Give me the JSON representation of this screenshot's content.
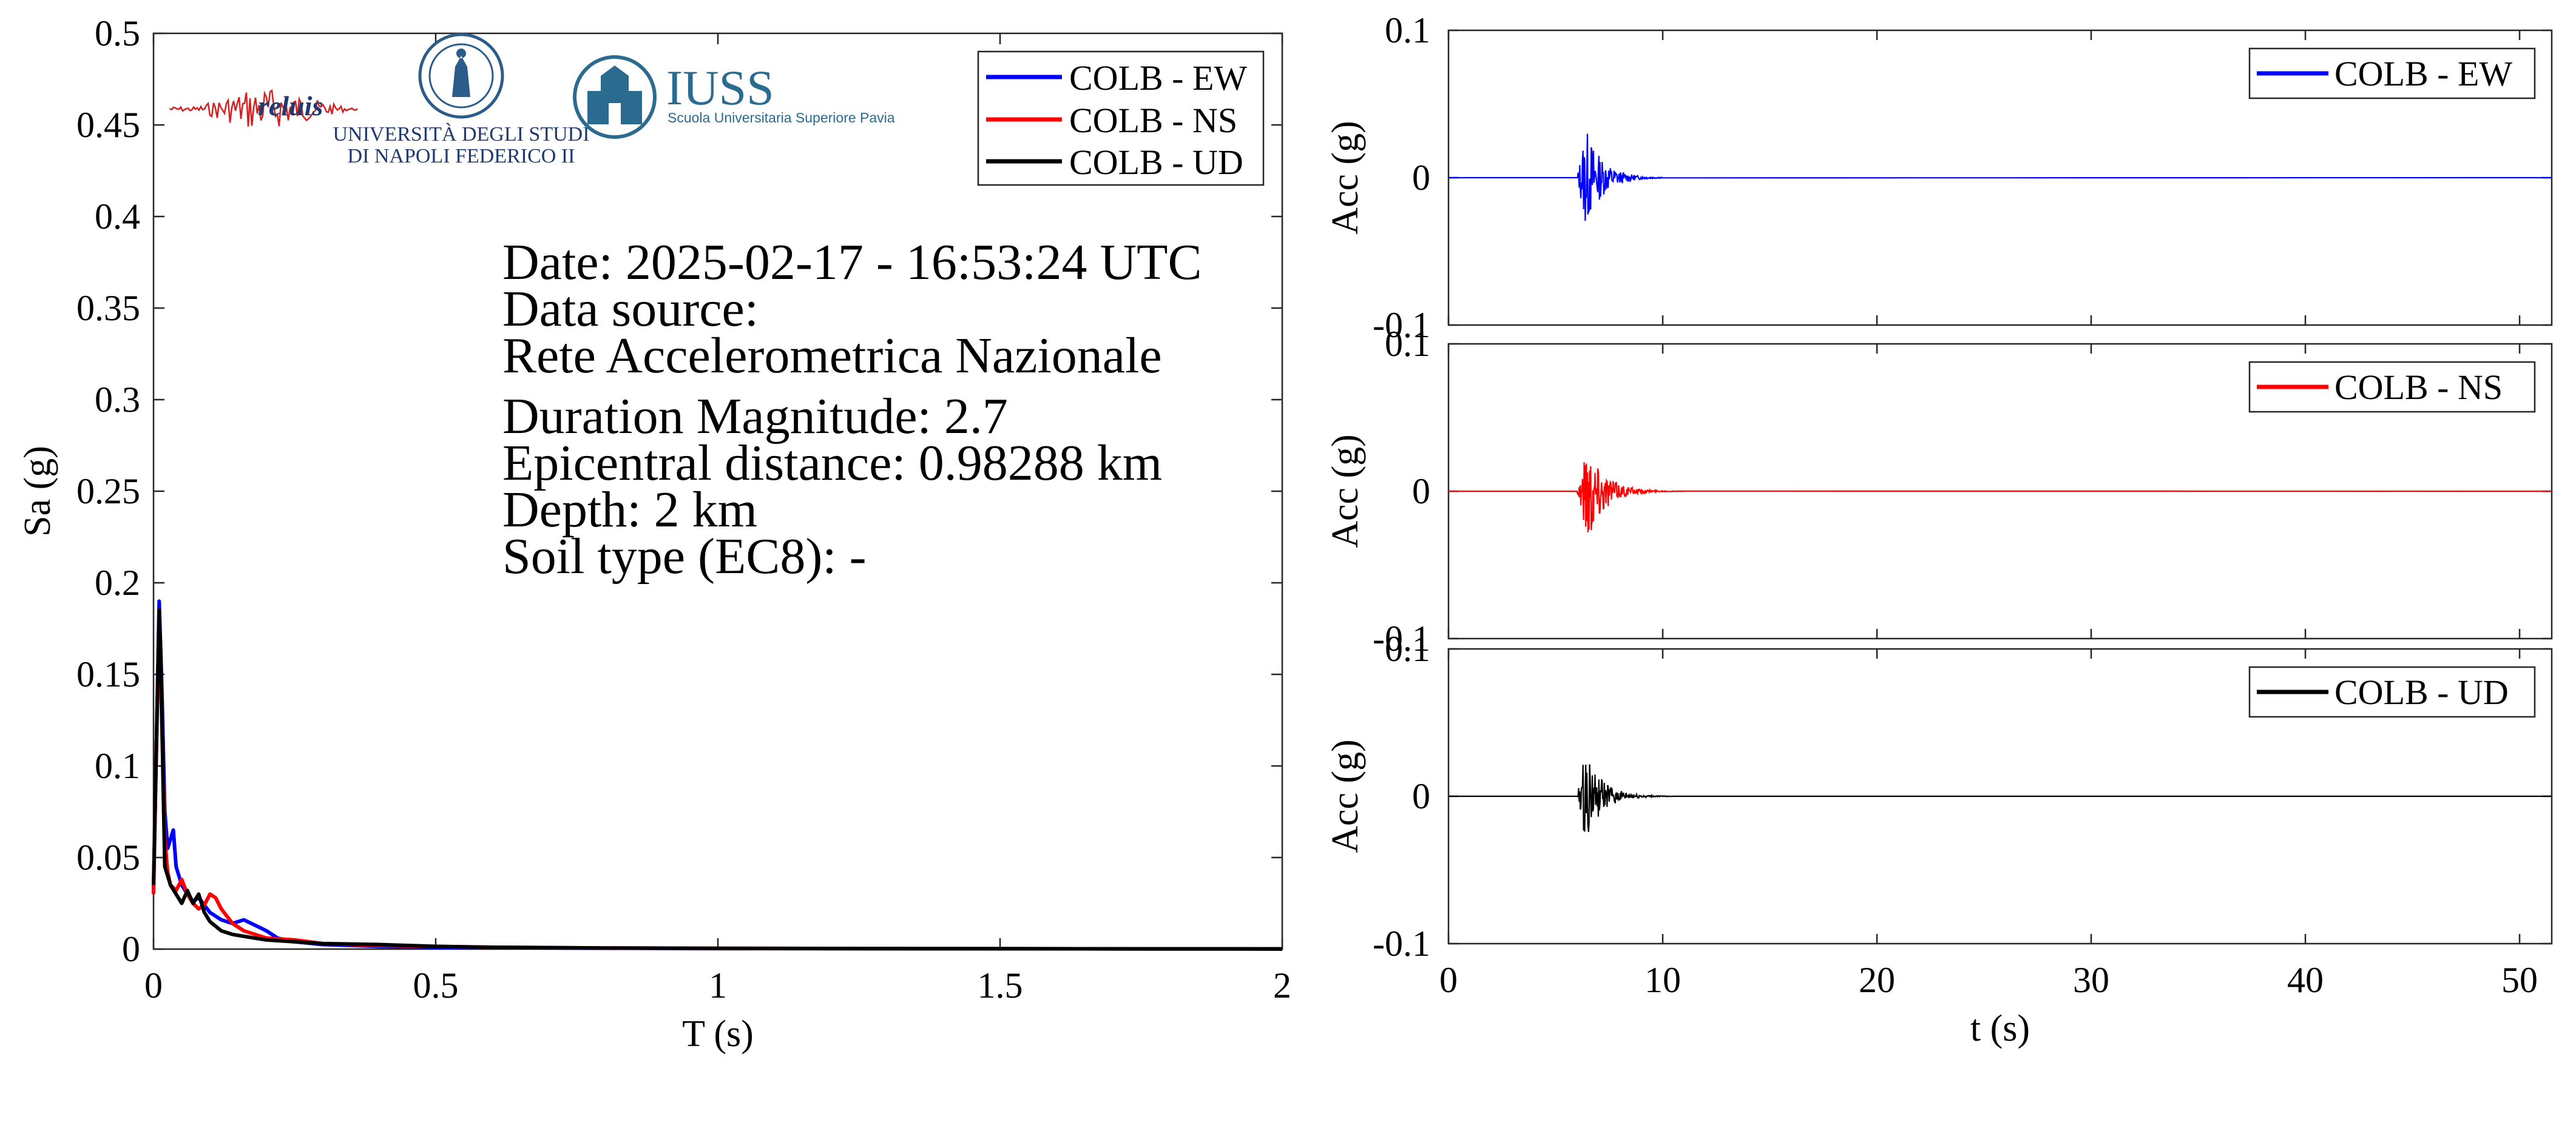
{
  "colors": {
    "ew": "#0000ff",
    "ns": "#ff0000",
    "ud": "#000000",
    "logo_blue": "#2b6b8f",
    "logo_red": "#d42020",
    "logo_navy": "#1f3a6e"
  },
  "logos": {
    "reluis": "reluis",
    "unina_line1": "UNIVERSITÀ DEGLI STUDI",
    "unina_line2": "DI NAPOLI FEDERICO II",
    "iuss_title": "IUSS",
    "iuss_subtitle": "Scuola Universitaria Superiore Pavia"
  },
  "info": {
    "date": "Date: 2025-02-17 - 16:53:24 UTC",
    "data_source_label": "Data source:",
    "data_source": "Rete Accelerometrica Nazionale",
    "magnitude": "Duration Magnitude: 2.7",
    "epicentral_distance": "Epicentral distance: 0.98288 km",
    "depth": "Depth: 2 km",
    "soil_type": "Soil type (EC8): -"
  },
  "chart_data": [
    {
      "type": "line",
      "xlabel": "T (s)",
      "ylabel": "Sa (g)",
      "xlim": [
        0,
        2
      ],
      "ylim": [
        0,
        0.5
      ],
      "xticks": [
        "0",
        "0.5",
        "1",
        "1.5",
        "2"
      ],
      "yticks": [
        "0",
        "0.05",
        "0.1",
        "0.15",
        "0.2",
        "0.25",
        "0.3",
        "0.35",
        "0.4",
        "0.45",
        "0.5"
      ],
      "legend_position": "top-right",
      "series": [
        {
          "name": "COLB - EW",
          "color": "#0000ff",
          "x": [
            0,
            0.01,
            0.015,
            0.02,
            0.025,
            0.03,
            0.035,
            0.04,
            0.05,
            0.06,
            0.07,
            0.08,
            0.09,
            0.1,
            0.12,
            0.14,
            0.16,
            0.18,
            0.2,
            0.22,
            0.25,
            0.3,
            0.35,
            0.4,
            0.5,
            0.6,
            0.8,
            1.0,
            1.5,
            2.0
          ],
          "y": [
            0.032,
            0.19,
            0.14,
            0.075,
            0.055,
            0.06,
            0.065,
            0.045,
            0.035,
            0.03,
            0.026,
            0.028,
            0.024,
            0.02,
            0.016,
            0.014,
            0.016,
            0.013,
            0.01,
            0.006,
            0.004,
            0.0025,
            0.002,
            0.0015,
            0.001,
            0.0008,
            0.0005,
            0.0003,
            0.0002,
            0.0001
          ]
        },
        {
          "name": "COLB - NS",
          "color": "#ff0000",
          "x": [
            0,
            0.01,
            0.015,
            0.02,
            0.025,
            0.03,
            0.04,
            0.05,
            0.06,
            0.07,
            0.08,
            0.09,
            0.1,
            0.11,
            0.12,
            0.14,
            0.16,
            0.18,
            0.2,
            0.25,
            0.3,
            0.4,
            0.5,
            0.6,
            0.8,
            1.0,
            1.5,
            2.0
          ],
          "y": [
            0.03,
            0.185,
            0.12,
            0.06,
            0.042,
            0.035,
            0.032,
            0.038,
            0.03,
            0.025,
            0.022,
            0.024,
            0.03,
            0.028,
            0.022,
            0.014,
            0.01,
            0.008,
            0.006,
            0.005,
            0.003,
            0.002,
            0.0015,
            0.001,
            0.0006,
            0.0004,
            0.0002,
            0.0001
          ]
        },
        {
          "name": "COLB - UD",
          "color": "#000000",
          "x": [
            0,
            0.01,
            0.013,
            0.017,
            0.02,
            0.025,
            0.03,
            0.04,
            0.05,
            0.06,
            0.07,
            0.08,
            0.09,
            0.1,
            0.12,
            0.14,
            0.16,
            0.2,
            0.25,
            0.3,
            0.4,
            0.5,
            0.6,
            0.8,
            1.0,
            1.5,
            2.0
          ],
          "y": [
            0.035,
            0.185,
            0.16,
            0.09,
            0.045,
            0.04,
            0.035,
            0.03,
            0.025,
            0.032,
            0.025,
            0.03,
            0.02,
            0.015,
            0.01,
            0.008,
            0.007,
            0.005,
            0.004,
            0.003,
            0.0025,
            0.0015,
            0.001,
            0.0006,
            0.0004,
            0.0002,
            0.0001
          ]
        }
      ]
    },
    {
      "type": "line",
      "xlabel": "",
      "ylabel": "Acc (g)",
      "xlim": [
        0,
        51.5
      ],
      "ylim": [
        -0.1,
        0.1
      ],
      "yticks": [
        "-0.1",
        "0",
        "0.1"
      ],
      "legend_position": "top-right",
      "series": [
        {
          "name": "COLB - EW",
          "color": "#0000ff",
          "burst_start": 6.0,
          "burst_peak": 6.4,
          "burst_end": 10.0,
          "peak_acc": 0.035
        }
      ]
    },
    {
      "type": "line",
      "xlabel": "",
      "ylabel": "Acc (g)",
      "xlim": [
        0,
        51.5
      ],
      "ylim": [
        -0.1,
        0.1
      ],
      "yticks": [
        "-0.1",
        "0",
        "0.1"
      ],
      "legend_position": "top-right",
      "series": [
        {
          "name": "COLB - NS",
          "color": "#ff0000",
          "burst_start": 6.0,
          "burst_peak": 6.5,
          "burst_end": 11.0,
          "peak_acc": 0.036
        }
      ]
    },
    {
      "type": "line",
      "xlabel": "t (s)",
      "ylabel": "Acc (g)",
      "xlim": [
        0,
        51.5
      ],
      "ylim": [
        -0.1,
        0.1
      ],
      "xticks": [
        "0",
        "10",
        "20",
        "30",
        "40",
        "50"
      ],
      "yticks": [
        "-0.1",
        "0",
        "0.1"
      ],
      "legend_position": "top-right",
      "series": [
        {
          "name": "COLB - UD",
          "color": "#000000",
          "burst_start": 6.0,
          "burst_peak": 6.4,
          "burst_end": 10.5,
          "peak_acc": 0.031
        }
      ]
    }
  ]
}
